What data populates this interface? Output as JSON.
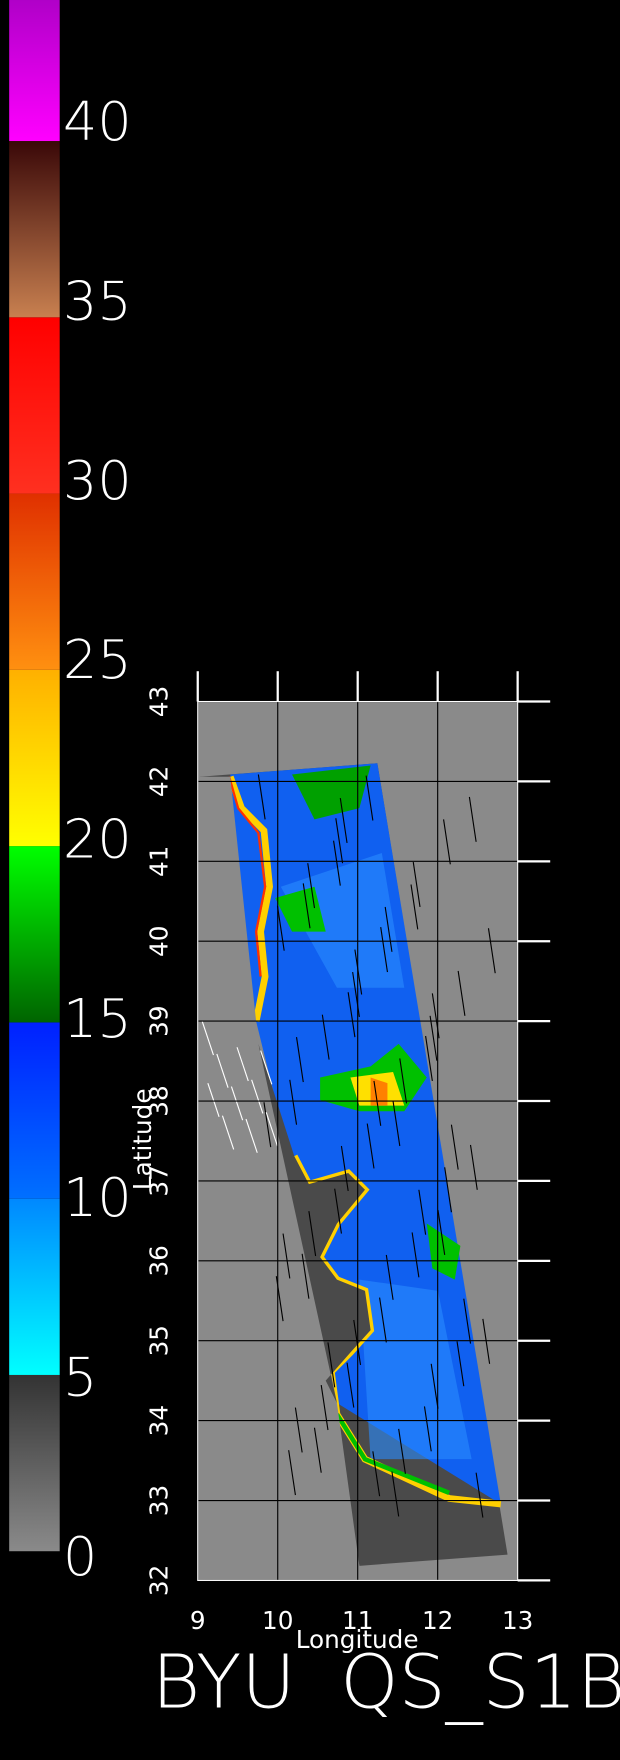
{
  "colorbar": {
    "lim": [
      0,
      44
    ],
    "ticks": [
      0,
      5,
      10,
      15,
      20,
      25,
      30,
      35,
      40
    ],
    "colors": [
      [
        "#8a8a8a",
        "#333333"
      ],
      [
        "#00ffff",
        "#0088ff"
      ],
      [
        "#0070ff",
        "#0020ff"
      ],
      [
        "#006400",
        "#00ff00"
      ],
      [
        "#ffff00",
        "#ffb000"
      ],
      [
        "#ff9010",
        "#e03000"
      ],
      [
        "#ff3020",
        "#ff0000"
      ],
      [
        "#c88050",
        "#3a0808"
      ],
      [
        "#ff00ff",
        "#b000c8"
      ]
    ]
  },
  "map": {
    "xlim": [
      9,
      13
    ],
    "ylim": [
      32,
      43
    ],
    "xticks": [
      9,
      10,
      11,
      12,
      13
    ],
    "yticks": [
      32,
      33,
      34,
      35,
      36,
      37,
      38,
      39,
      40,
      41,
      42,
      43
    ],
    "xlabel": "Longitude",
    "ylabel": "Latitude",
    "frame_color": "#ffffff",
    "grid_color": "#000000",
    "background": "#8a8a8a"
  },
  "title": [
    "BYU",
    "QS_S1B"
  ]
}
